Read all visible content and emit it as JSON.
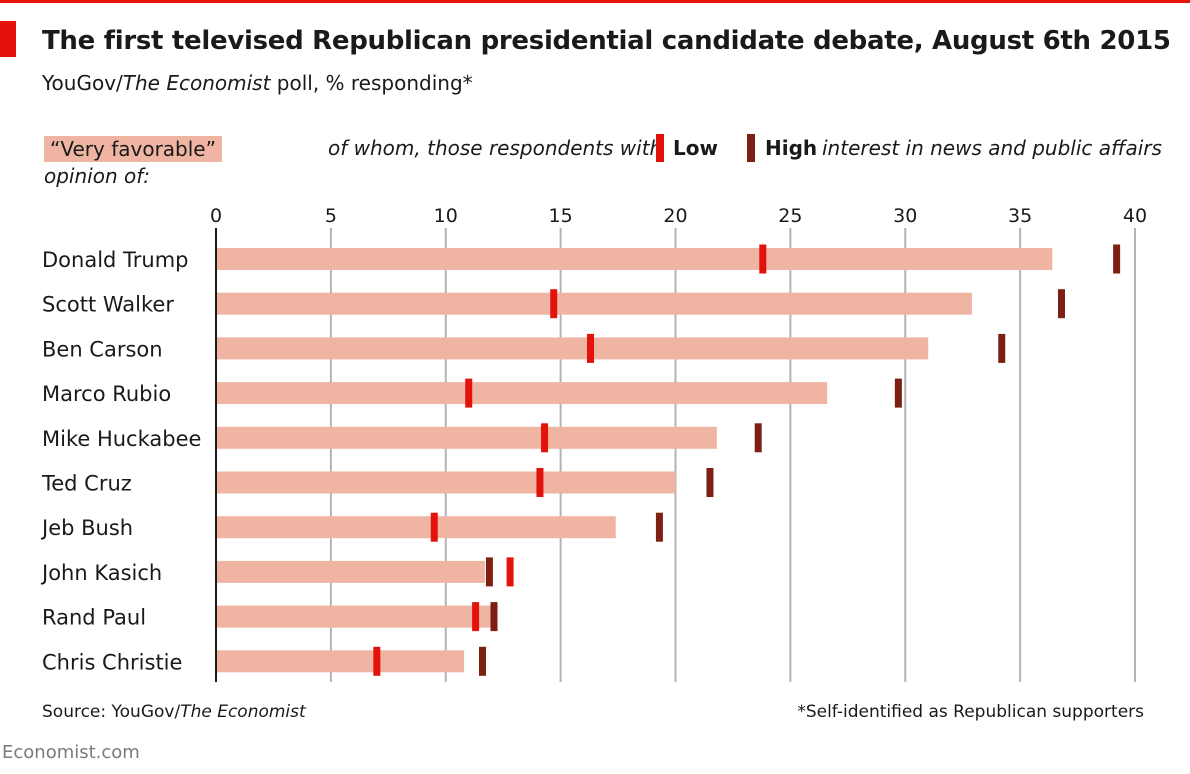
{
  "header": {
    "title": "The first televised Republican presidential candidate debate, August 6th 2015",
    "subtitle_prefix": "YouGov/",
    "subtitle_italic": "The Economist",
    "subtitle_suffix": " poll, % responding*"
  },
  "key": {
    "bar_label": "“Very favorable”",
    "bar_label_line2": "opinion of:",
    "of_whom": "of whom, those respondents with",
    "low": "Low",
    "high": "High",
    "tail": "interest in news and public affairs"
  },
  "colors": {
    "bar": "#efb5a2",
    "low": "#e3120b",
    "high": "#7d1f12",
    "grid": "#b3b3b3",
    "accent": "#e3120b"
  },
  "chart_data": {
    "type": "bar",
    "orientation": "horizontal",
    "xlim": [
      0,
      40
    ],
    "ticks": [
      0,
      5,
      10,
      15,
      20,
      25,
      30,
      35,
      40
    ],
    "grid": true,
    "categories": [
      "Donald Trump",
      "Scott Walker",
      "Ben Carson",
      "Marco Rubio",
      "Mike Huckabee",
      "Ted Cruz",
      "Jeb Bush",
      "John Kasich",
      "Rand Paul",
      "Chris Christie"
    ],
    "series": [
      {
        "name": "“Very favorable” opinion of",
        "kind": "bar",
        "values": [
          36.4,
          32.9,
          31.0,
          26.6,
          21.8,
          20.0,
          17.4,
          11.7,
          12.0,
          10.8
        ]
      },
      {
        "name": "Low",
        "kind": "marker",
        "values": [
          23.8,
          14.7,
          16.3,
          11.0,
          14.3,
          14.1,
          9.5,
          12.8,
          11.3,
          7.0
        ]
      },
      {
        "name": "High",
        "kind": "marker",
        "values": [
          39.2,
          36.8,
          34.2,
          29.7,
          23.6,
          21.5,
          19.3,
          11.9,
          12.1,
          11.6
        ]
      }
    ]
  },
  "footer": {
    "source_prefix": "Source: YouGov/",
    "source_italic": "The Economist",
    "footnote": "*Self-identified as Republican supporters",
    "brand": "Economist.com"
  }
}
